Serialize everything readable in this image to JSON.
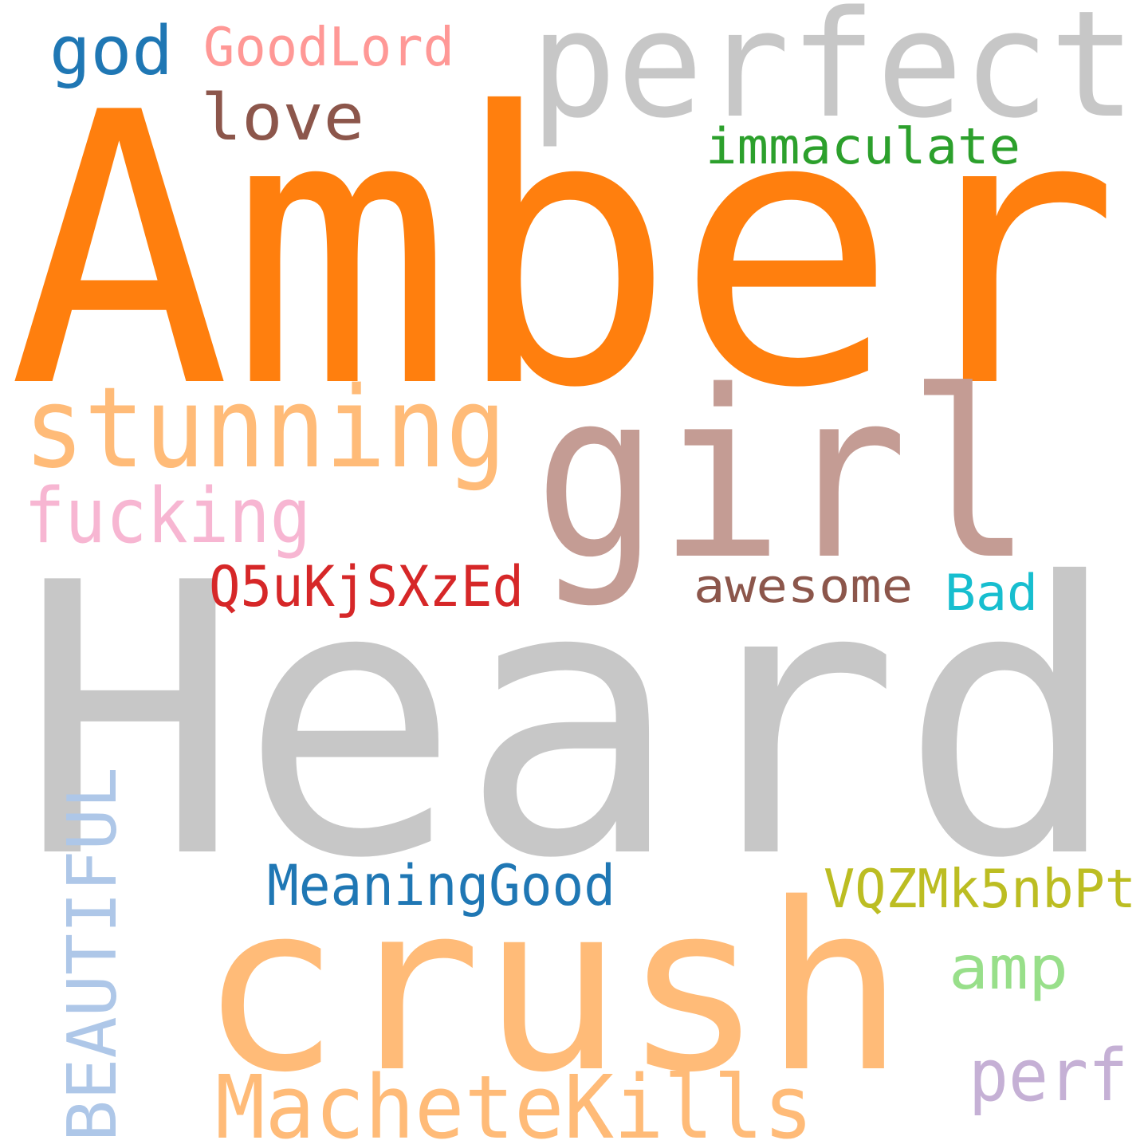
{
  "words": [
    {
      "text": "Amber",
      "color": "#ff7f0e"
    },
    {
      "text": "Heard",
      "color": "#c7c7c7"
    },
    {
      "text": "perfect",
      "color": "#c7c7c7"
    },
    {
      "text": "girl",
      "color": "#c49c94"
    },
    {
      "text": "crush",
      "color": "#ffbb78"
    },
    {
      "text": "stunning",
      "color": "#ffbb78"
    },
    {
      "text": "MacheteKills",
      "color": "#ffbb78"
    },
    {
      "text": "fucking",
      "color": "#f7b6d2"
    },
    {
      "text": "god",
      "color": "#1f77b4"
    },
    {
      "text": "GoodLord",
      "color": "#ff9896"
    },
    {
      "text": "love",
      "color": "#8c564b"
    },
    {
      "text": "immaculate",
      "color": "#2ca02c"
    },
    {
      "text": "Q5uKjSXzEd",
      "color": "#d62728"
    },
    {
      "text": "awesome",
      "color": "#8c564b"
    },
    {
      "text": "Bad",
      "color": "#17becf"
    },
    {
      "text": "MeaningGood",
      "color": "#1f77b4"
    },
    {
      "text": "VQZMk5nbPt",
      "color": "#bcbd22"
    },
    {
      "text": "amp",
      "color": "#98df8a"
    },
    {
      "text": "perf",
      "color": "#c5b0d5"
    },
    {
      "text": "BEAUTIFUL",
      "color": "#aec7e8"
    }
  ]
}
